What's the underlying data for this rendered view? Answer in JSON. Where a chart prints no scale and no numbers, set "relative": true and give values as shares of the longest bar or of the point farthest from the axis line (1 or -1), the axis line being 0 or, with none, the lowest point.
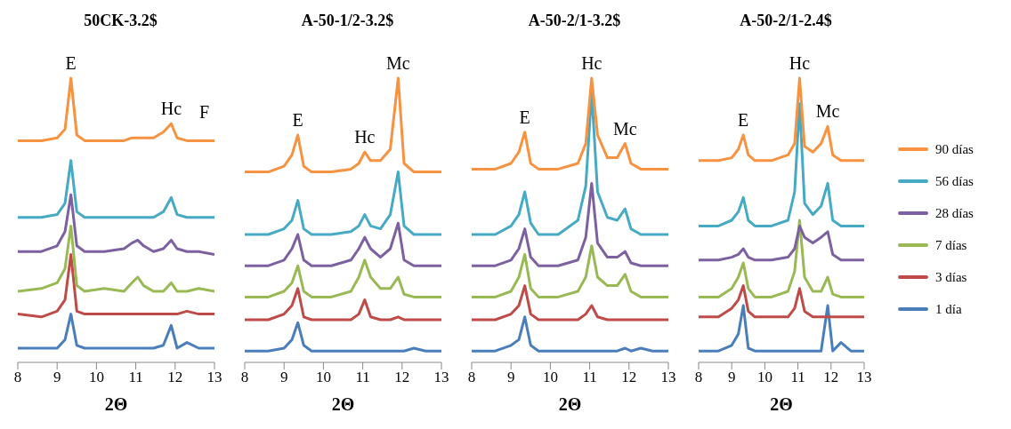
{
  "chart_data": [
    {
      "type": "line",
      "title": "50CK-3.2$",
      "xlabel": "2Θ",
      "relative": true,
      "xlim": [
        8,
        13
      ],
      "xticks": [
        8,
        9,
        10,
        11,
        12,
        13
      ],
      "legend": false,
      "x": [
        8,
        8.6,
        9.0,
        9.2,
        9.35,
        9.5,
        9.7,
        10.2,
        10.7,
        10.9,
        11.05,
        11.2,
        11.45,
        11.7,
        11.9,
        12.05,
        12.3,
        12.6,
        13
      ],
      "annotations": [
        {
          "text": "E",
          "x": 9.35,
          "y": 1
        },
        {
          "text": "Hc",
          "x": 11.9,
          "y": 0.84
        },
        "F"
      ],
      "series": [
        {
          "color": "#4a7ebb",
          "values": [
            0.05,
            0.05,
            0.05,
            0.08,
            0.17,
            0.06,
            0.05,
            0.05,
            0.05,
            0.05,
            0.05,
            0.05,
            0.05,
            0.06,
            0.13,
            0.05,
            0.07,
            0.05,
            0.05
          ]
        },
        {
          "color": "#be4b48",
          "values": [
            0.17,
            0.16,
            0.18,
            0.22,
            0.38,
            0.18,
            0.17,
            0.17,
            0.17,
            0.17,
            0.17,
            0.17,
            0.17,
            0.17,
            0.17,
            0.17,
            0.18,
            0.17,
            0.17
          ]
        },
        {
          "color": "#98b954",
          "values": [
            0.25,
            0.26,
            0.28,
            0.33,
            0.48,
            0.27,
            0.25,
            0.26,
            0.25,
            0.28,
            0.3,
            0.27,
            0.25,
            0.25,
            0.28,
            0.25,
            0.25,
            0.26,
            0.25
          ]
        },
        {
          "color": "#7d60a0",
          "values": [
            0.39,
            0.39,
            0.41,
            0.46,
            0.59,
            0.41,
            0.39,
            0.39,
            0.4,
            0.42,
            0.43,
            0.41,
            0.39,
            0.4,
            0.43,
            0.4,
            0.39,
            0.39,
            0.38
          ]
        },
        {
          "color": "#46aac5",
          "values": [
            0.51,
            0.51,
            0.52,
            0.56,
            0.71,
            0.53,
            0.51,
            0.51,
            0.51,
            0.51,
            0.51,
            0.51,
            0.51,
            0.53,
            0.58,
            0.52,
            0.51,
            0.51,
            0.51
          ]
        },
        {
          "color": "#f69240",
          "values": [
            0.78,
            0.78,
            0.79,
            0.82,
            1,
            0.8,
            0.78,
            0.78,
            0.78,
            0.79,
            0.79,
            0.79,
            0.79,
            0.81,
            0.84,
            0.79,
            0.78,
            0.78,
            0.78
          ]
        }
      ]
    },
    {
      "type": "line",
      "title": "A-50-1/2-3.2$",
      "xlabel": "2Θ",
      "relative": true,
      "xlim": [
        8,
        13
      ],
      "xticks": [
        8,
        9,
        10,
        11,
        12,
        13
      ],
      "legend": false,
      "x": [
        8,
        8.6,
        9.0,
        9.2,
        9.35,
        9.5,
        9.7,
        10.2,
        10.7,
        10.9,
        11.05,
        11.2,
        11.45,
        11.7,
        11.9,
        12.05,
        12.3,
        12.6,
        13
      ],
      "annotations": [
        {
          "text": "E",
          "x": 9.35,
          "y": 0.8
        },
        {
          "text": "Hc",
          "x": 11.05,
          "y": 0.74
        },
        {
          "text": "Mc",
          "x": 11.9,
          "y": 1
        }
      ],
      "series": [
        {
          "color": "#4a7ebb",
          "values": [
            0.04,
            0.04,
            0.05,
            0.08,
            0.14,
            0.06,
            0.04,
            0.04,
            0.04,
            0.04,
            0.04,
            0.04,
            0.04,
            0.04,
            0.04,
            0.04,
            0.05,
            0.04,
            0.04
          ]
        },
        {
          "color": "#be4b48",
          "values": [
            0.15,
            0.15,
            0.17,
            0.2,
            0.26,
            0.16,
            0.15,
            0.15,
            0.15,
            0.17,
            0.22,
            0.16,
            0.15,
            0.15,
            0.16,
            0.15,
            0.15,
            0.15,
            0.15
          ]
        },
        {
          "color": "#98b954",
          "values": [
            0.23,
            0.23,
            0.25,
            0.28,
            0.34,
            0.25,
            0.23,
            0.23,
            0.25,
            0.3,
            0.36,
            0.3,
            0.26,
            0.26,
            0.3,
            0.24,
            0.23,
            0.23,
            0.23
          ]
        },
        {
          "color": "#7d60a0",
          "values": [
            0.34,
            0.34,
            0.36,
            0.4,
            0.45,
            0.36,
            0.34,
            0.34,
            0.36,
            0.4,
            0.44,
            0.4,
            0.37,
            0.4,
            0.49,
            0.36,
            0.34,
            0.34,
            0.34
          ]
        },
        {
          "color": "#46aac5",
          "values": [
            0.45,
            0.45,
            0.47,
            0.5,
            0.57,
            0.47,
            0.45,
            0.45,
            0.46,
            0.48,
            0.52,
            0.48,
            0.47,
            0.52,
            0.67,
            0.48,
            0.45,
            0.45,
            0.45
          ]
        },
        {
          "color": "#f69240",
          "values": [
            0.67,
            0.67,
            0.69,
            0.73,
            0.8,
            0.69,
            0.67,
            0.67,
            0.68,
            0.7,
            0.74,
            0.71,
            0.71,
            0.75,
            1,
            0.7,
            0.67,
            0.67,
            0.67
          ]
        }
      ]
    },
    {
      "type": "line",
      "title": "A-50-2/1-3.2$",
      "xlabel": "2Θ",
      "relative": true,
      "xlim": [
        8,
        13
      ],
      "xticks": [
        8,
        9,
        10,
        11,
        12,
        13
      ],
      "legend": false,
      "x": [
        8,
        8.6,
        9.0,
        9.2,
        9.35,
        9.5,
        9.7,
        10.2,
        10.7,
        10.9,
        11.05,
        11.2,
        11.45,
        11.7,
        11.9,
        12.05,
        12.3,
        12.6,
        13
      ],
      "annotations": [
        {
          "text": "E",
          "x": 9.35,
          "y": 0.81
        },
        {
          "text": "Hc",
          "x": 11.05,
          "y": 1
        },
        {
          "text": "Mc",
          "x": 11.9,
          "y": 0.77
        }
      ],
      "series": [
        {
          "color": "#4a7ebb",
          "values": [
            0.04,
            0.04,
            0.06,
            0.08,
            0.16,
            0.06,
            0.04,
            0.04,
            0.04,
            0.04,
            0.04,
            0.04,
            0.04,
            0.04,
            0.05,
            0.04,
            0.05,
            0.04,
            0.04
          ]
        },
        {
          "color": "#be4b48",
          "values": [
            0.15,
            0.15,
            0.17,
            0.2,
            0.27,
            0.17,
            0.15,
            0.15,
            0.15,
            0.17,
            0.2,
            0.16,
            0.15,
            0.15,
            0.15,
            0.15,
            0.15,
            0.15,
            0.15
          ]
        },
        {
          "color": "#98b954",
          "values": [
            0.23,
            0.23,
            0.25,
            0.3,
            0.38,
            0.26,
            0.23,
            0.23,
            0.25,
            0.3,
            0.41,
            0.3,
            0.27,
            0.27,
            0.31,
            0.25,
            0.23,
            0.23,
            0.23
          ]
        },
        {
          "color": "#7d60a0",
          "values": [
            0.34,
            0.34,
            0.36,
            0.4,
            0.47,
            0.37,
            0.34,
            0.34,
            0.36,
            0.44,
            0.63,
            0.42,
            0.37,
            0.37,
            0.39,
            0.35,
            0.34,
            0.34,
            0.34
          ]
        },
        {
          "color": "#46aac5",
          "values": [
            0.45,
            0.45,
            0.48,
            0.52,
            0.6,
            0.49,
            0.45,
            0.45,
            0.5,
            0.62,
            0.95,
            0.6,
            0.51,
            0.5,
            0.54,
            0.47,
            0.45,
            0.45,
            0.45
          ]
        },
        {
          "color": "#f69240",
          "values": [
            0.68,
            0.68,
            0.7,
            0.74,
            0.81,
            0.7,
            0.68,
            0.68,
            0.7,
            0.77,
            1,
            0.8,
            0.72,
            0.72,
            0.77,
            0.7,
            0.68,
            0.68,
            0.68
          ]
        }
      ]
    },
    {
      "type": "line",
      "title": "A-50-2/1-2.4$",
      "xlabel": "2Θ",
      "relative": true,
      "xlim": [
        8,
        13
      ],
      "xticks": [
        8,
        9,
        10,
        11,
        12,
        13
      ],
      "legend": "right",
      "x": [
        8,
        8.6,
        9.0,
        9.2,
        9.35,
        9.5,
        9.7,
        10.2,
        10.7,
        10.9,
        11.05,
        11.2,
        11.45,
        11.7,
        11.9,
        12.05,
        12.3,
        12.6,
        13
      ],
      "annotations": [
        {
          "text": "E",
          "x": 9.35,
          "y": 0.8
        },
        {
          "text": "Hc",
          "x": 11.05,
          "y": 1
        },
        {
          "text": "Mc",
          "x": 11.9,
          "y": 0.83
        }
      ],
      "series": [
        {
          "name": "1 día",
          "color": "#4a7ebb",
          "values": [
            0.04,
            0.04,
            0.06,
            0.1,
            0.2,
            0.05,
            0.04,
            0.04,
            0.04,
            0.04,
            0.04,
            0.04,
            0.04,
            0.04,
            0.2,
            0.04,
            0.07,
            0.04,
            0.04
          ]
        },
        {
          "name": "3 días",
          "color": "#be4b48",
          "values": [
            0.16,
            0.16,
            0.19,
            0.22,
            0.27,
            0.18,
            0.16,
            0.16,
            0.16,
            0.19,
            0.26,
            0.18,
            0.16,
            0.16,
            0.16,
            0.16,
            0.16,
            0.16,
            0.16
          ]
        },
        {
          "name": "7 días",
          "color": "#98b954",
          "values": [
            0.23,
            0.23,
            0.26,
            0.3,
            0.35,
            0.26,
            0.23,
            0.23,
            0.25,
            0.32,
            0.5,
            0.3,
            0.25,
            0.25,
            0.3,
            0.24,
            0.23,
            0.23,
            0.23
          ]
        },
        {
          "name": "28 días",
          "color": "#7d60a0",
          "values": [
            0.36,
            0.36,
            0.37,
            0.38,
            0.4,
            0.37,
            0.36,
            0.36,
            0.37,
            0.4,
            0.48,
            0.44,
            0.42,
            0.44,
            0.46,
            0.38,
            0.36,
            0.36,
            0.36
          ]
        },
        {
          "name": "56 días",
          "color": "#46aac5",
          "values": [
            0.48,
            0.48,
            0.5,
            0.53,
            0.58,
            0.5,
            0.48,
            0.48,
            0.5,
            0.6,
            0.91,
            0.56,
            0.52,
            0.55,
            0.63,
            0.5,
            0.48,
            0.48,
            0.48
          ]
        },
        {
          "name": "90 días",
          "color": "#f69240",
          "values": [
            0.71,
            0.71,
            0.72,
            0.75,
            0.8,
            0.73,
            0.71,
            0.71,
            0.73,
            0.77,
            1,
            0.76,
            0.74,
            0.77,
            0.83,
            0.73,
            0.71,
            0.71,
            0.71
          ]
        }
      ]
    }
  ]
}
